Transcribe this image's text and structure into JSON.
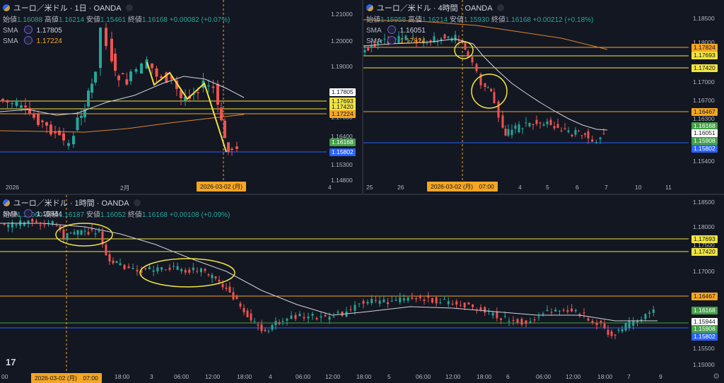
{
  "colors": {
    "up": "#26a69a",
    "down": "#ef5350",
    "yellow": "#f0e442",
    "orange": "#f5a623",
    "blue": "#2962ff",
    "green": "#43a047",
    "sma_white": "#d1d4dc",
    "sma_orange": "#e0862b"
  },
  "panes": [
    {
      "id": "daily",
      "title": "ユーロ／米ドル · 1日 · OANDA",
      "ohlc": [
        {
          "k": "始値",
          "v": "1.16088"
        },
        {
          "k": "高値",
          "v": "1.16214"
        },
        {
          "k": "安値",
          "v": "1.15461"
        },
        {
          "k": "終値",
          "v": "1.16168"
        },
        {
          "k": "",
          "v": "+0.00082 (+0.07%)"
        }
      ],
      "sma": [
        {
          "label": "SMA",
          "value": "1.17805",
          "color": "#d1d4dc"
        },
        {
          "label": "SMA",
          "value": "1.17224",
          "color": "#f5a623"
        }
      ],
      "yticks": [
        "1.21000",
        "1.20000",
        "1.19000",
        "1.18000",
        "1.17000",
        "1.16400",
        "1.15300",
        "1.14800"
      ],
      "xticks": [
        "2026",
        "2月",
        "4"
      ],
      "datechip": "2026-03-02 (月)",
      "price_labels": [
        {
          "text": "1.17805",
          "kind": "white"
        },
        {
          "text": "1.17693",
          "kind": "yellow"
        },
        {
          "text": "1.17420",
          "kind": "yellow"
        },
        {
          "text": "1.17224",
          "kind": "orange"
        },
        {
          "text": "1.16168",
          "kind": "green"
        },
        {
          "text": "1.15802",
          "kind": "blue"
        }
      ]
    },
    {
      "id": "h4",
      "title": "ユーロ／米ドル · 4時間 · OANDA",
      "ohlc": [
        {
          "k": "始値",
          "v": "1.15958"
        },
        {
          "k": "高値",
          "v": "1.16214"
        },
        {
          "k": "安値",
          "v": "1.15930"
        },
        {
          "k": "終値",
          "v": "1.16168"
        },
        {
          "k": "",
          "v": "+0.00212 (+0.18%)"
        }
      ],
      "sma": [
        {
          "label": "SMA",
          "value": "1.16051",
          "color": "#d1d4dc"
        },
        {
          "label": "SMA",
          "value": "1.17824",
          "color": "#f5a623"
        }
      ],
      "yticks": [
        "1.18500",
        "1.18000",
        "1.17500",
        "1.17000",
        "1.16700",
        "1.16300",
        "1.15700",
        "1.15400"
      ],
      "xticks": [
        "25",
        "26",
        "4",
        "5",
        "6",
        "7",
        "10",
        "11"
      ],
      "datechip": "2026-03-02 (月)　07:00",
      "price_labels": [
        {
          "text": "1.17824",
          "kind": "orange"
        },
        {
          "text": "1.17693",
          "kind": "yellow"
        },
        {
          "text": "1.17420",
          "kind": "yellow"
        },
        {
          "text": "1.16467",
          "kind": "orange"
        },
        {
          "text": "1.16168",
          "kind": "green"
        },
        {
          "text": "1.16051",
          "kind": "white"
        },
        {
          "text": "1.15908",
          "kind": "green"
        },
        {
          "text": "1.15802",
          "kind": "blue"
        }
      ]
    },
    {
      "id": "h1",
      "title": "ユーロ／米ドル · 1時間 · OANDA",
      "ohlc": [
        {
          "k": "始値",
          "v": "1.16060"
        },
        {
          "k": "高値",
          "v": "1.16187"
        },
        {
          "k": "安値",
          "v": "1.16052"
        },
        {
          "k": "終値",
          "v": "1.16168"
        },
        {
          "k": "",
          "v": "+0.00108 (+0.09%)"
        }
      ],
      "sma": [
        {
          "label": "SMA",
          "value": "1.15944",
          "color": "#d1d4dc"
        }
      ],
      "yticks": [
        "1.18500",
        "1.18000",
        "1.17500",
        "1.17000",
        "1.16500",
        "1.16000",
        "1.15500",
        "1.15000"
      ],
      "xticks": [
        "00",
        "18:00",
        "3",
        "06:00",
        "12:00",
        "18:00",
        "4",
        "06:00",
        "12:00",
        "18:00",
        "5",
        "06:00",
        "12:00",
        "18:00",
        "6",
        "06:00",
        "12:00",
        "18:00",
        "7",
        "9"
      ],
      "datechip": "2026-03-02 (月)　07:00",
      "price_labels": [
        {
          "text": "1.17693",
          "kind": "yellow"
        },
        {
          "text": "1.17420",
          "kind": "yellow"
        },
        {
          "text": "1.16467",
          "kind": "orange"
        },
        {
          "text": "1.16168",
          "kind": "green"
        },
        {
          "text": "1.15944",
          "kind": "white"
        },
        {
          "text": "1.15908",
          "kind": "green"
        },
        {
          "text": "1.15802",
          "kind": "blue"
        }
      ]
    }
  ],
  "logo": "17"
}
